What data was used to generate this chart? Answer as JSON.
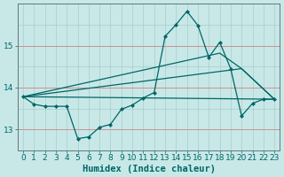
{
  "xlabel": "Humidex (Indice chaleur)",
  "bg_color": "#c8e8e8",
  "grid_v_color": "#aacccc",
  "grid_h_color": "#aacccc",
  "grid_red_color": "#cc9090",
  "line_color": "#006666",
  "xlim": [
    -0.5,
    23.5
  ],
  "ylim": [
    12.5,
    16.0
  ],
  "yticks": [
    13,
    14,
    15
  ],
  "xticks": [
    0,
    1,
    2,
    3,
    4,
    5,
    6,
    7,
    8,
    9,
    10,
    11,
    12,
    13,
    14,
    15,
    16,
    17,
    18,
    19,
    20,
    21,
    22,
    23
  ],
  "main_x": [
    0,
    1,
    2,
    3,
    4,
    5,
    6,
    7,
    8,
    9,
    10,
    11,
    12,
    13,
    14,
    15,
    16,
    17,
    18,
    19,
    20,
    21,
    22,
    23
  ],
  "main_y": [
    13.78,
    13.6,
    13.55,
    13.55,
    13.55,
    12.78,
    12.82,
    13.05,
    13.12,
    13.48,
    13.58,
    13.75,
    13.88,
    15.22,
    15.5,
    15.82,
    15.48,
    14.72,
    15.08,
    14.45,
    13.32,
    13.62,
    13.72,
    13.72
  ],
  "line1_x": [
    0,
    23
  ],
  "line1_y": [
    13.78,
    13.72
  ],
  "line2_x": [
    0,
    20,
    23
  ],
  "line2_y": [
    13.78,
    14.45,
    13.72
  ],
  "line3_x": [
    0,
    18,
    20,
    23
  ],
  "line3_y": [
    13.78,
    14.82,
    14.45,
    13.72
  ],
  "tick_fontsize": 6.5,
  "label_fontsize": 7.5
}
